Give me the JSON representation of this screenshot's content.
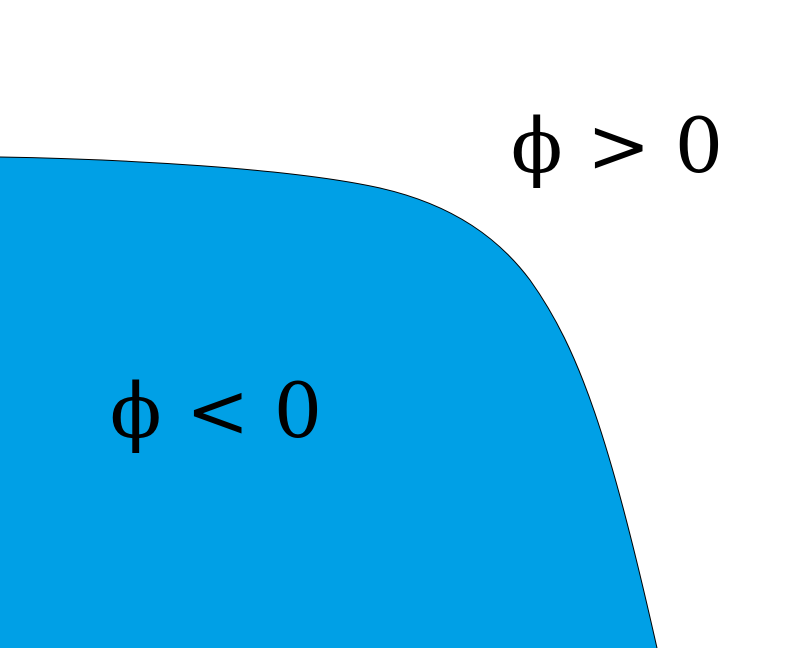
{
  "regions": {
    "inside": {
      "label": "ϕ < 0",
      "color": "#00a0e6"
    },
    "outside": {
      "label": "ϕ > 0",
      "color": "#ffffff"
    }
  },
  "interface_color": "#000000",
  "label_color": "#000000"
}
